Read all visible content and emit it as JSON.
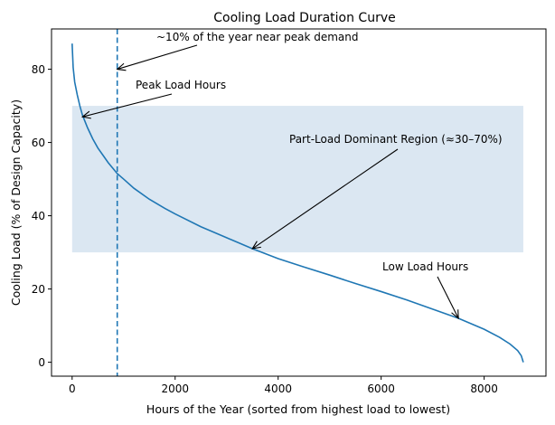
{
  "chart_data": {
    "type": "line",
    "title": "Cooling Load Duration Curve",
    "xlabel": "Hours of the Year (sorted from highest load to lowest)",
    "ylabel": "Cooling Load (% of Design Capacity)",
    "xlim": [
      -400,
      9200
    ],
    "ylim": [
      -3.8,
      91
    ],
    "xticks": [
      0,
      2000,
      4000,
      6000,
      8000
    ],
    "xtick_labels": [
      "0",
      "2000",
      "4000",
      "6000",
      "8000"
    ],
    "yticks": [
      0,
      20,
      40,
      60,
      80
    ],
    "ytick_labels": [
      "0",
      "20",
      "40",
      "60",
      "80"
    ],
    "grid": false,
    "legend": null,
    "colors": {
      "line": "#1f77b4",
      "band": "#dbe7f2",
      "annotation": "#000000"
    },
    "series": [
      {
        "name": "Cooling Load Duration",
        "x": [
          0,
          20,
          50,
          100,
          150,
          200,
          300,
          400,
          500,
          600,
          700,
          876,
          1000,
          1200,
          1500,
          1800,
          2000,
          2500,
          3000,
          3500,
          4000,
          4500,
          5000,
          5500,
          6000,
          6500,
          7000,
          7500,
          8000,
          8300,
          8500,
          8650,
          8720,
          8760
        ],
        "y": [
          87,
          80.5,
          76.5,
          73,
          70,
          67.5,
          64,
          61,
          58.5,
          56.5,
          54.5,
          51.5,
          50,
          47.5,
          44.5,
          42,
          40.5,
          37,
          34,
          31,
          28.3,
          26,
          23.8,
          21.5,
          19.3,
          17,
          14.5,
          12,
          9,
          6.8,
          5,
          3.2,
          1.8,
          0
        ]
      }
    ],
    "vline": {
      "x": 876,
      "style": "dashed",
      "label": "~10% of the year near peak demand"
    },
    "band": {
      "x_range": [
        0,
        8760
      ],
      "y_range": [
        30,
        70
      ],
      "label": "Part-Load Dominant Region (≈30–70%)"
    },
    "annotations": [
      {
        "text": "~10% of the year near peak demand",
        "xy": [
          876,
          80
        ],
        "xytext": [
          1600,
          88
        ]
      },
      {
        "text": "Peak Load Hours",
        "xy": [
          200,
          67
        ],
        "xytext": [
          1200,
          74
        ]
      },
      {
        "text": "Part-Load Dominant Region (≈30–70%)",
        "xy": [
          3500,
          31
        ],
        "xytext": [
          4200,
          60
        ]
      },
      {
        "text": "Low Load Hours",
        "xy": [
          7500,
          12
        ],
        "xytext": [
          6000,
          24.5
        ]
      }
    ]
  }
}
